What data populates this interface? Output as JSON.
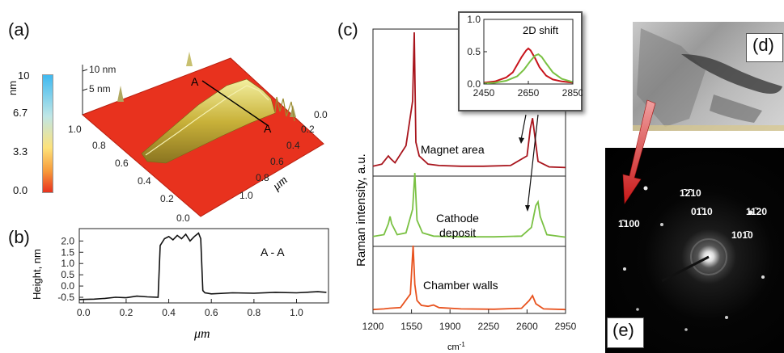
{
  "panels": {
    "a": "(a)",
    "b": "(b)",
    "c": "(c)",
    "d": "(d)",
    "e": "(e)"
  },
  "colorbar": {
    "unit": "nm",
    "ticks": [
      "10",
      "6.7",
      "3.3",
      "0.0"
    ],
    "colors": [
      "#3fb9f0",
      "#c8e4c0",
      "#fde27a",
      "#f79a3a",
      "#e8321e"
    ]
  },
  "afm3d": {
    "zticks": [
      "10 nm",
      "5 nm"
    ],
    "left_axis_ticks": [
      "1.0",
      "0.8",
      "0.6",
      "0.4",
      "0.2",
      "0.0"
    ],
    "right_axis_ticks": [
      "0.0",
      "0.2",
      "0.4",
      "0.6",
      "0.8",
      "1.0"
    ],
    "right_axis_label": "μm",
    "section_start": "A",
    "section_end": "A",
    "surface_color": "#e8321e"
  },
  "chart_data": [
    {
      "type": "line",
      "panel": "b",
      "annotation": "A - A",
      "xlabel": "μm",
      "ylabel": "Height, nm",
      "xticks": [
        "0.0",
        "0.2",
        "0.4",
        "0.6",
        "0.8",
        "1.0"
      ],
      "yticks": [
        "2.0",
        "1.5",
        "1.0",
        "0.5",
        "0.0",
        "-0.5"
      ],
      "xlim": [
        -0.02,
        1.15
      ],
      "ylim": [
        -0.75,
        2.55
      ],
      "x": [
        -0.02,
        0.05,
        0.1,
        0.15,
        0.2,
        0.25,
        0.3,
        0.35,
        0.36,
        0.38,
        0.4,
        0.42,
        0.44,
        0.46,
        0.48,
        0.5,
        0.52,
        0.54,
        0.55,
        0.56,
        0.57,
        0.6,
        0.7,
        0.8,
        0.9,
        1.0,
        1.1,
        1.14
      ],
      "y": [
        -0.6,
        -0.58,
        -0.55,
        -0.5,
        -0.52,
        -0.45,
        -0.48,
        -0.5,
        1.8,
        2.1,
        2.2,
        2.05,
        2.25,
        2.1,
        2.3,
        2.0,
        2.2,
        2.35,
        2.1,
        -0.2,
        -0.3,
        -0.35,
        -0.3,
        -0.32,
        -0.28,
        -0.3,
        -0.25,
        -0.28
      ]
    },
    {
      "type": "line",
      "panel": "c",
      "xlabel": "cm-1",
      "ylabel": "Raman intensity, a.u.",
      "xticks": [
        "1200",
        "1550",
        "1900",
        "2250",
        "2600",
        "2950"
      ],
      "xlim": [
        1200,
        2950
      ],
      "series": [
        {
          "name": "Magnet area",
          "color": "#a8141c",
          "x": [
            1200,
            1280,
            1340,
            1360,
            1400,
            1500,
            1560,
            1575,
            1590,
            1620,
            1700,
            1800,
            2000,
            2200,
            2450,
            2600,
            2630,
            2650,
            2670,
            2700,
            2800,
            2950
          ],
          "y": [
            0.05,
            0.08,
            0.2,
            0.16,
            0.1,
            0.35,
            1.0,
            2.0,
            0.4,
            0.2,
            0.08,
            0.06,
            0.05,
            0.05,
            0.06,
            0.2,
            0.6,
            0.75,
            0.5,
            0.12,
            0.04,
            0.03
          ]
        },
        {
          "name": "Cathode deposit",
          "color": "#7ac143",
          "x": [
            1200,
            1300,
            1340,
            1355,
            1370,
            1420,
            1500,
            1560,
            1580,
            1600,
            1650,
            1750,
            2000,
            2300,
            2550,
            2640,
            2680,
            2700,
            2720,
            2780,
            2950
          ],
          "y": [
            0.05,
            0.1,
            0.4,
            0.6,
            0.4,
            0.1,
            0.15,
            0.8,
            1.8,
            0.5,
            0.15,
            0.06,
            0.04,
            0.04,
            0.06,
            0.3,
            0.9,
            1.0,
            0.6,
            0.1,
            0.03
          ]
        },
        {
          "name": "Chamber walls",
          "color": "#e8531f",
          "x": [
            1200,
            1300,
            1350,
            1450,
            1540,
            1565,
            1580,
            1600,
            1640,
            1700,
            1750,
            1800,
            2000,
            2300,
            2550,
            2620,
            2650,
            2680,
            2750,
            2950
          ],
          "y": [
            0.02,
            0.04,
            0.06,
            0.08,
            0.5,
            2.0,
            0.8,
            0.3,
            0.15,
            0.12,
            0.16,
            0.08,
            0.04,
            0.03,
            0.06,
            0.3,
            0.45,
            0.2,
            0.04,
            0.02
          ]
        }
      ]
    },
    {
      "type": "line",
      "panel": "c-inset",
      "title": "2D shift",
      "xticks": [
        "2450",
        "2650",
        "2850"
      ],
      "yticks": [
        "1.0",
        "0.5",
        "0.0"
      ],
      "xlim": [
        2450,
        2850
      ],
      "ylim": [
        0,
        1.0
      ],
      "series": [
        {
          "color": "#c8141c",
          "x": [
            2450,
            2500,
            2550,
            2580,
            2600,
            2620,
            2640,
            2650,
            2660,
            2680,
            2700,
            2730,
            2760,
            2800,
            2850
          ],
          "y": [
            0.02,
            0.04,
            0.1,
            0.18,
            0.3,
            0.42,
            0.52,
            0.55,
            0.52,
            0.4,
            0.26,
            0.13,
            0.07,
            0.04,
            0.02
          ]
        },
        {
          "color": "#7ac143",
          "x": [
            2450,
            2500,
            2550,
            2600,
            2630,
            2660,
            2680,
            2695,
            2710,
            2730,
            2760,
            2800,
            2850
          ],
          "y": [
            0.01,
            0.02,
            0.05,
            0.12,
            0.22,
            0.36,
            0.44,
            0.46,
            0.42,
            0.32,
            0.18,
            0.08,
            0.03
          ]
        }
      ]
    }
  ],
  "diffraction": {
    "spots": [
      "1̄2̄10",
      "01̄10",
      "11̄20",
      "1̄100",
      "101̄0"
    ]
  }
}
